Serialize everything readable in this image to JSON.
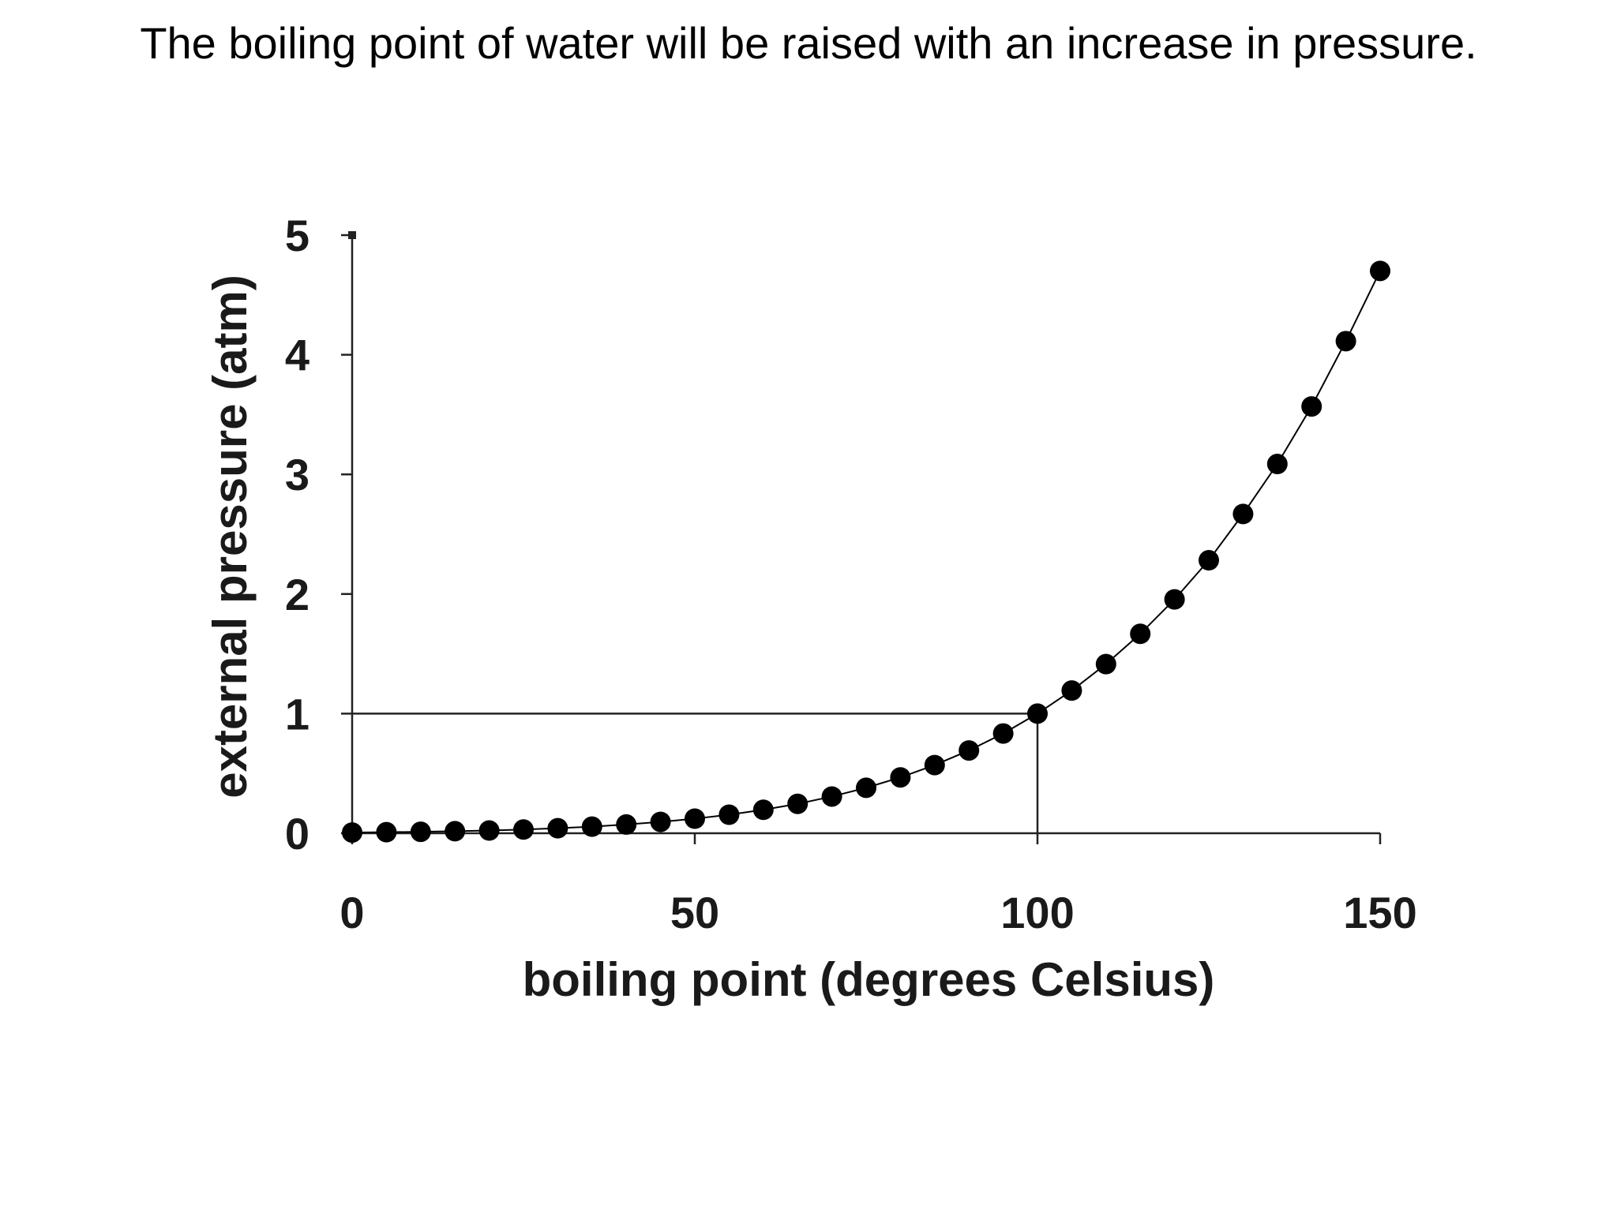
{
  "slide": {
    "title": "The boiling point of water will be raised with an increase in pressure."
  },
  "chart_data": {
    "type": "line",
    "title": "",
    "xlabel": "boiling point (degrees Celsius)",
    "ylabel": "external pressure (atm)",
    "xlim": [
      0,
      150
    ],
    "ylim": [
      0,
      5
    ],
    "x_ticks": [
      0,
      50,
      100,
      150
    ],
    "y_ticks": [
      0,
      1,
      2,
      3,
      4,
      5
    ],
    "grid": false,
    "legend": "none",
    "series": [
      {
        "x": [
          0,
          5,
          10,
          15,
          20,
          25,
          30,
          35,
          40,
          45,
          50,
          55,
          60,
          65,
          70,
          75,
          80,
          85,
          90,
          95,
          100,
          105,
          110,
          115,
          120,
          125,
          130,
          135,
          140,
          145,
          150
        ],
        "y": [
          0.006,
          0.009,
          0.012,
          0.017,
          0.023,
          0.031,
          0.042,
          0.055,
          0.073,
          0.095,
          0.122,
          0.155,
          0.196,
          0.246,
          0.307,
          0.38,
          0.467,
          0.57,
          0.692,
          0.834,
          1.0,
          1.193,
          1.414,
          1.667,
          1.955,
          2.282,
          2.669,
          3.087,
          3.568,
          4.114,
          4.701
        ],
        "marker": "circle",
        "color": "#000000"
      }
    ],
    "reference_lines": [
      {
        "from": [
          0,
          1
        ],
        "to": [
          100,
          1
        ]
      },
      {
        "from": [
          100,
          0
        ],
        "to": [
          100,
          1
        ]
      }
    ]
  }
}
